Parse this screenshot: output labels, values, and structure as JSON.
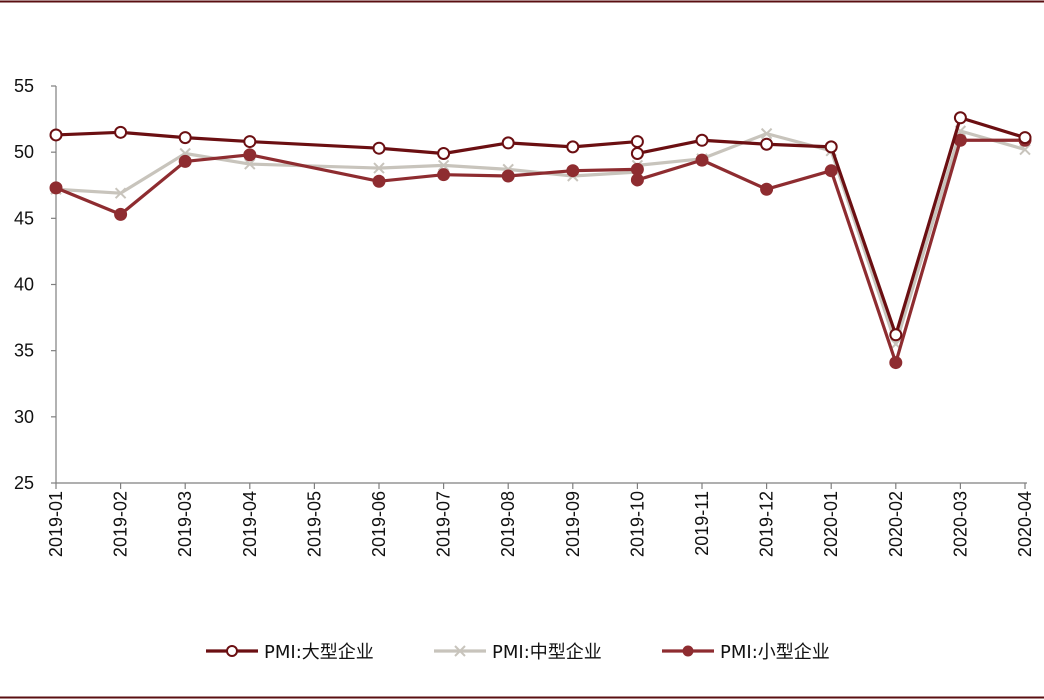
{
  "colors": {
    "frame": "#5a0f12",
    "axis": "#7f7f7f",
    "large": "#6b0f12",
    "medium": "#c8c4bc",
    "small": "#8e2c30"
  },
  "chart_data": {
    "type": "line",
    "title": "",
    "xlabel": "",
    "ylabel": "",
    "ylim": [
      25,
      55
    ],
    "yticks": [
      25,
      30,
      35,
      40,
      45,
      50,
      55
    ],
    "grid": false,
    "legend_position": "bottom",
    "categories": [
      "2019-01",
      "2019-02",
      "2019-03",
      "2019-04",
      "2019-05",
      "2019-06",
      "2019-07",
      "2019-08",
      "2019-09",
      "2019-10",
      "2019-11",
      "2019-12",
      "2020-01",
      "2020-02",
      "2020-03",
      "2020-04"
    ],
    "series": [
      {
        "name": "PMI:大型企业",
        "marker": "open-circle",
        "points": [
          {
            "x": "2019-01",
            "y": 51.3
          },
          {
            "x": "2019-02",
            "y": 51.5
          },
          {
            "x": "2019-03",
            "y": 51.1
          },
          {
            "x": "2019-04",
            "y": 50.8
          },
          {
            "x": "2019-06",
            "y": 50.3
          },
          {
            "x": "2019-07",
            "y": 49.9
          },
          {
            "x": "2019-08",
            "y": 50.7
          },
          {
            "x": "2019-09",
            "y": 50.4
          },
          {
            "x": "2019-10",
            "y": 50.8
          },
          {
            "x": "2019-10",
            "y": 49.9
          },
          {
            "x": "2019-11",
            "y": 50.9
          },
          {
            "x": "2019-12",
            "y": 50.6
          },
          {
            "x": "2020-01",
            "y": 50.4
          },
          {
            "x": "2020-02",
            "y": 36.2
          },
          {
            "x": "2020-03",
            "y": 52.6
          },
          {
            "x": "2020-04",
            "y": 51.1
          }
        ]
      },
      {
        "name": "PMI:中型企业",
        "marker": "x",
        "points": [
          {
            "x": "2019-01",
            "y": 47.2
          },
          {
            "x": "2019-02",
            "y": 46.9
          },
          {
            "x": "2019-03",
            "y": 49.9
          },
          {
            "x": "2019-04",
            "y": 49.1
          },
          {
            "x": "2019-06",
            "y": 48.8
          },
          {
            "x": "2019-07",
            "y": 49.0
          },
          {
            "x": "2019-08",
            "y": 48.7
          },
          {
            "x": "2019-09",
            "y": 48.2
          },
          {
            "x": "2019-10",
            "y": 48.5
          },
          {
            "x": "2019-10",
            "y": 49.0
          },
          {
            "x": "2019-11",
            "y": 49.5
          },
          {
            "x": "2019-12",
            "y": 51.4
          },
          {
            "x": "2020-01",
            "y": 50.1
          },
          {
            "x": "2020-02",
            "y": 35.5
          },
          {
            "x": "2020-03",
            "y": 51.6
          },
          {
            "x": "2020-04",
            "y": 50.2
          }
        ]
      },
      {
        "name": "PMI:小型企业",
        "marker": "filled-circle",
        "points": [
          {
            "x": "2019-01",
            "y": 47.3
          },
          {
            "x": "2019-02",
            "y": 45.3
          },
          {
            "x": "2019-03",
            "y": 49.3
          },
          {
            "x": "2019-04",
            "y": 49.8
          },
          {
            "x": "2019-06",
            "y": 47.8
          },
          {
            "x": "2019-07",
            "y": 48.3
          },
          {
            "x": "2019-08",
            "y": 48.2
          },
          {
            "x": "2019-09",
            "y": 48.6
          },
          {
            "x": "2019-10",
            "y": 48.7
          },
          {
            "x": "2019-10",
            "y": 47.9
          },
          {
            "x": "2019-11",
            "y": 49.4
          },
          {
            "x": "2019-12",
            "y": 47.2
          },
          {
            "x": "2020-01",
            "y": 48.6
          },
          {
            "x": "2020-02",
            "y": 34.1
          },
          {
            "x": "2020-03",
            "y": 50.9
          },
          {
            "x": "2020-04",
            "y": 50.9
          }
        ]
      }
    ]
  }
}
